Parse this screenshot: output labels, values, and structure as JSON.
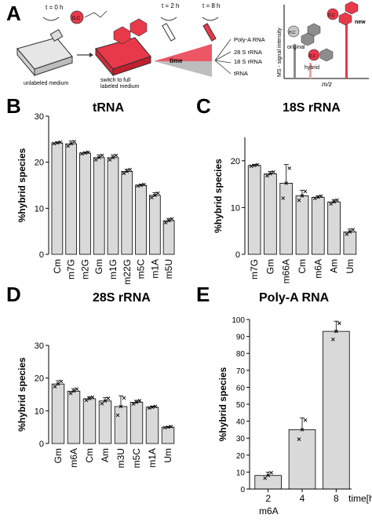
{
  "panelA": {
    "letter": "A",
    "t0": "t = 0 h",
    "t2": "t = 2 h",
    "t8": "t = 8 h",
    "unlabeled": "unlabeled medium",
    "switch1": "switch to full",
    "switch2": "labeled medium",
    "time": "time",
    "rna_types": [
      "Poly-A RNA",
      "28 S rRNA",
      "18 S rRNA",
      "tRNA"
    ],
    "ms_axis": "MS - signal intensity",
    "mz": "m/z",
    "original": "original",
    "hybrid": "hybrid",
    "new": "new",
    "dc": "D,C",
    "hc": "H,C",
    "colors": {
      "red": "#e8394a",
      "grey": "#8d8d8d",
      "pink": "#f4a0a8"
    }
  },
  "panelB": {
    "letter": "B",
    "title": "tRNA"
  },
  "panelC": {
    "letter": "C",
    "title": "18S rRNA"
  },
  "panelD": {
    "letter": "D",
    "title": "28S rRNA"
  },
  "panelE": {
    "letter": "E",
    "title": "Poly-A RNA",
    "xunit": "time[h]",
    "xsub": "m6A"
  },
  "chart_data": [
    {
      "type": "bar",
      "title": "tRNA",
      "ylabel": "%hybrid species",
      "ylim": [
        0,
        30
      ],
      "yticks": [
        0,
        10,
        20,
        30
      ],
      "categories": [
        "Cm",
        "m7G",
        "m2G",
        "Gm",
        "m1G",
        "m22G",
        "m5C",
        "m1A",
        "m5U"
      ],
      "values": [
        24.2,
        24.0,
        22.0,
        21.0,
        21.0,
        18.0,
        15.0,
        12.8,
        7.3
      ],
      "errors": [
        0.2,
        0.6,
        0.2,
        0.6,
        0.6,
        0.5,
        0.2,
        0.6,
        0.5
      ]
    },
    {
      "type": "bar",
      "title": "18S rRNA",
      "ylabel": "%hybrid species",
      "ylim": [
        0,
        25
      ],
      "yticks": [
        0,
        10,
        20
      ],
      "categories": [
        "m7G",
        "Gm",
        "m66A",
        "Cm",
        "m6A",
        "Am",
        "Um"
      ],
      "values": [
        19.0,
        17.2,
        15.2,
        12.5,
        12.2,
        11.2,
        4.8
      ],
      "errors": [
        0.2,
        0.5,
        4.0,
        1.2,
        0.3,
        0.5,
        0.6
      ]
    },
    {
      "type": "bar",
      "title": "28S rRNA",
      "ylabel": "%hybrid species",
      "ylim": [
        0,
        30
      ],
      "yticks": [
        0,
        10,
        20,
        30
      ],
      "categories": [
        "Gm",
        "m6A",
        "Cm",
        "Am",
        "m3U",
        "m5C",
        "m1A",
        "Um"
      ],
      "values": [
        18.2,
        16.0,
        13.7,
        13.0,
        11.3,
        12.6,
        11.1,
        5.0
      ],
      "errors": [
        1.0,
        0.8,
        0.6,
        1.0,
        3.3,
        0.6,
        0.3,
        0.2
      ]
    },
    {
      "type": "bar",
      "title": "Poly-A RNA",
      "ylabel": "%hybrid species",
      "xlabel": "time[h]",
      "ylim": [
        0,
        100
      ],
      "yticks": [
        0,
        10,
        20,
        30,
        40,
        50,
        60,
        70,
        80,
        90,
        100
      ],
      "categories": [
        "2",
        "4",
        "8"
      ],
      "values": [
        8.0,
        35.0,
        93.0
      ],
      "errors": [
        2.0,
        7.0,
        6.0
      ]
    }
  ]
}
